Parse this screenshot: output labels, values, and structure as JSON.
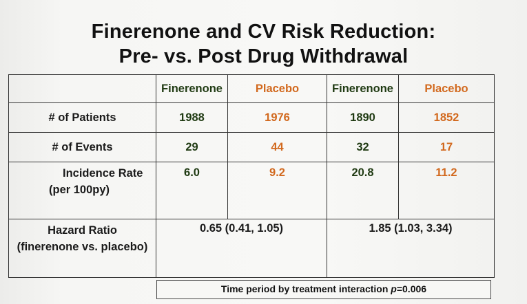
{
  "title_line1": "Finerenone and CV Risk Reduction:",
  "title_line2": "Pre- vs. Post Drug Withdrawal",
  "table": {
    "headers": [
      "",
      "Finerenone",
      "Placebo",
      "Finerenone",
      "Placebo"
    ],
    "rows": {
      "patients": {
        "label": "# of Patients",
        "values": [
          "1988",
          "1976",
          "1890",
          "1852"
        ]
      },
      "events": {
        "label": "# of Events",
        "values": [
          "29",
          "44",
          "32",
          "17"
        ]
      },
      "incidence": {
        "label_line1": "Incidence Rate",
        "label_line2": "(per 100py)",
        "values": [
          "6.0",
          "9.2",
          "20.8",
          "11.2"
        ]
      },
      "hazard": {
        "label_line1": "Hazard Ratio",
        "label_line2": "(finerenone vs. placebo)",
        "values": [
          "0.65 (0.41, 1.05)",
          "1.85 (1.03, 3.34)"
        ]
      }
    }
  },
  "footer": {
    "prefix": "Time period by treatment interaction ",
    "p_symbol": "p",
    "suffix": "=0.006"
  },
  "colors": {
    "finerenone": "#1f3a12",
    "placebo": "#d2691e"
  }
}
